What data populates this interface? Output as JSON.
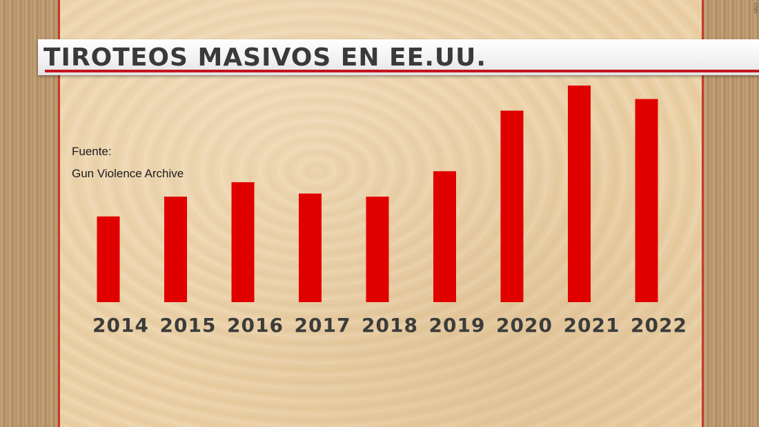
{
  "header": {
    "title": "TIROTEOS MASIVOS EN EE.UU."
  },
  "watermark": "CNN",
  "source": {
    "label": "Fuente:",
    "name": "Gun Violence Archive"
  },
  "colors": {
    "bar": "#e00000",
    "title_stripe": "#c4161c",
    "title_text": "#3a3a3a"
  },
  "chart_data": {
    "type": "bar",
    "title": "TIROTEOS MASIVOS EN EE.UU.",
    "categories": [
      "2014",
      "2015",
      "2016",
      "2017",
      "2018",
      "2019",
      "2020",
      "2021",
      "2022"
    ],
    "values": [
      273,
      336,
      382,
      346,
      336,
      417,
      610,
      690,
      647
    ],
    "ylim": [
      0,
      690
    ],
    "grid": false,
    "legend": "none",
    "xlabel": "",
    "ylabel": ""
  }
}
